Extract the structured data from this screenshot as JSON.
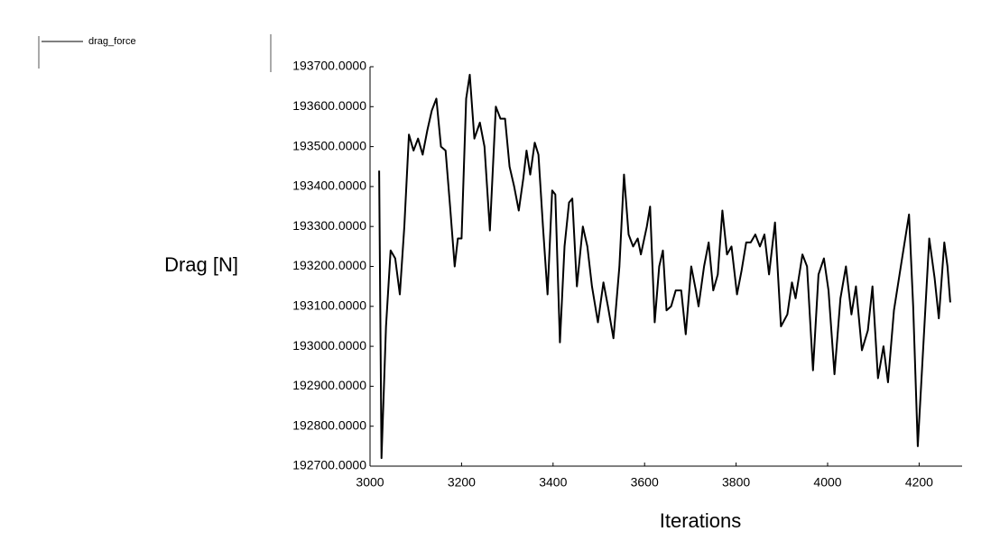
{
  "chart_data": {
    "type": "line",
    "y_label": "Drag [N]",
    "x_label": "Iterations",
    "x": [
      3020,
      3025,
      3035,
      3045,
      3055,
      3065,
      3075,
      3085,
      3095,
      3105,
      3115,
      3125,
      3135,
      3145,
      3155,
      3165,
      3175,
      3185,
      3192,
      3200,
      3210,
      3218,
      3228,
      3240,
      3250,
      3262,
      3275,
      3285,
      3295,
      3305,
      3315,
      3325,
      3335,
      3342,
      3350,
      3360,
      3368,
      3378,
      3388,
      3398,
      3405,
      3415,
      3425,
      3435,
      3442,
      3452,
      3465,
      3475,
      3485,
      3498,
      3510,
      3520,
      3532,
      3545,
      3555,
      3565,
      3575,
      3585,
      3592,
      3605,
      3612,
      3622,
      3632,
      3640,
      3648,
      3658,
      3668,
      3680,
      3690,
      3702,
      3712,
      3718,
      3730,
      3740,
      3750,
      3760,
      3770,
      3780,
      3790,
      3802,
      3812,
      3822,
      3832,
      3842,
      3852,
      3862,
      3872,
      3885,
      3898,
      3912,
      3922,
      3930,
      3945,
      3955,
      3968,
      3980,
      3992,
      4002,
      4015,
      4028,
      4040,
      4052,
      4062,
      4075,
      4088,
      4098,
      4110,
      4122,
      4132,
      4145,
      4160,
      4178,
      4187,
      4197,
      4210,
      4222,
      4234,
      4243,
      4255,
      4262,
      4268
    ],
    "series": [
      {
        "name": "drag_force",
        "color": "#000000",
        "values": [
          193440,
          192720,
          193050,
          193240,
          193220,
          193130,
          193300,
          193530,
          193490,
          193520,
          193480,
          193540,
          193590,
          193620,
          193500,
          193490,
          193350,
          193200,
          193270,
          193270,
          193620,
          193680,
          193520,
          193560,
          193500,
          193290,
          193600,
          193570,
          193570,
          193450,
          193400,
          193340,
          193420,
          193490,
          193430,
          193510,
          193480,
          193300,
          193130,
          193390,
          193380,
          193010,
          193250,
          193360,
          193370,
          193150,
          193300,
          193250,
          193150,
          193060,
          193160,
          193100,
          193020,
          193200,
          193430,
          193280,
          193250,
          193270,
          193230,
          193300,
          193350,
          193060,
          193200,
          193240,
          193090,
          193100,
          193140,
          193140,
          193030,
          193200,
          193140,
          193100,
          193200,
          193260,
          193140,
          193180,
          193340,
          193230,
          193250,
          193130,
          193190,
          193260,
          193260,
          193280,
          193250,
          193280,
          193180,
          193310,
          193050,
          193080,
          193160,
          193120,
          193230,
          193200,
          192940,
          193180,
          193220,
          193140,
          192930,
          193120,
          193200,
          193080,
          193150,
          192990,
          193040,
          193150,
          192920,
          193000,
          192910,
          193090,
          193200,
          193330,
          193100,
          192750,
          193020,
          193270,
          193170,
          193070,
          193260,
          193200,
          193110
        ]
      }
    ],
    "xlim": [
      3000,
      4290
    ],
    "xticks": [
      3000,
      3200,
      3400,
      3600,
      3800,
      4000,
      4200
    ],
    "ylim": [
      192700,
      193700
    ],
    "yticks": [
      {
        "value": 192700,
        "label": "192700.0000"
      },
      {
        "value": 192800,
        "label": "192800.0000"
      },
      {
        "value": 192900,
        "label": "192900.0000"
      },
      {
        "value": 193000,
        "label": "193000.0000"
      },
      {
        "value": 193100,
        "label": "193100.0000"
      },
      {
        "value": 193200,
        "label": "193200.0000"
      },
      {
        "value": 193300,
        "label": "193300.0000"
      },
      {
        "value": 193400,
        "label": "193400.0000"
      },
      {
        "value": 193500,
        "label": "193500.0000"
      },
      {
        "value": 193600,
        "label": "193600.0000"
      },
      {
        "value": 193700,
        "label": "193700.0000"
      }
    ],
    "grid": false
  }
}
